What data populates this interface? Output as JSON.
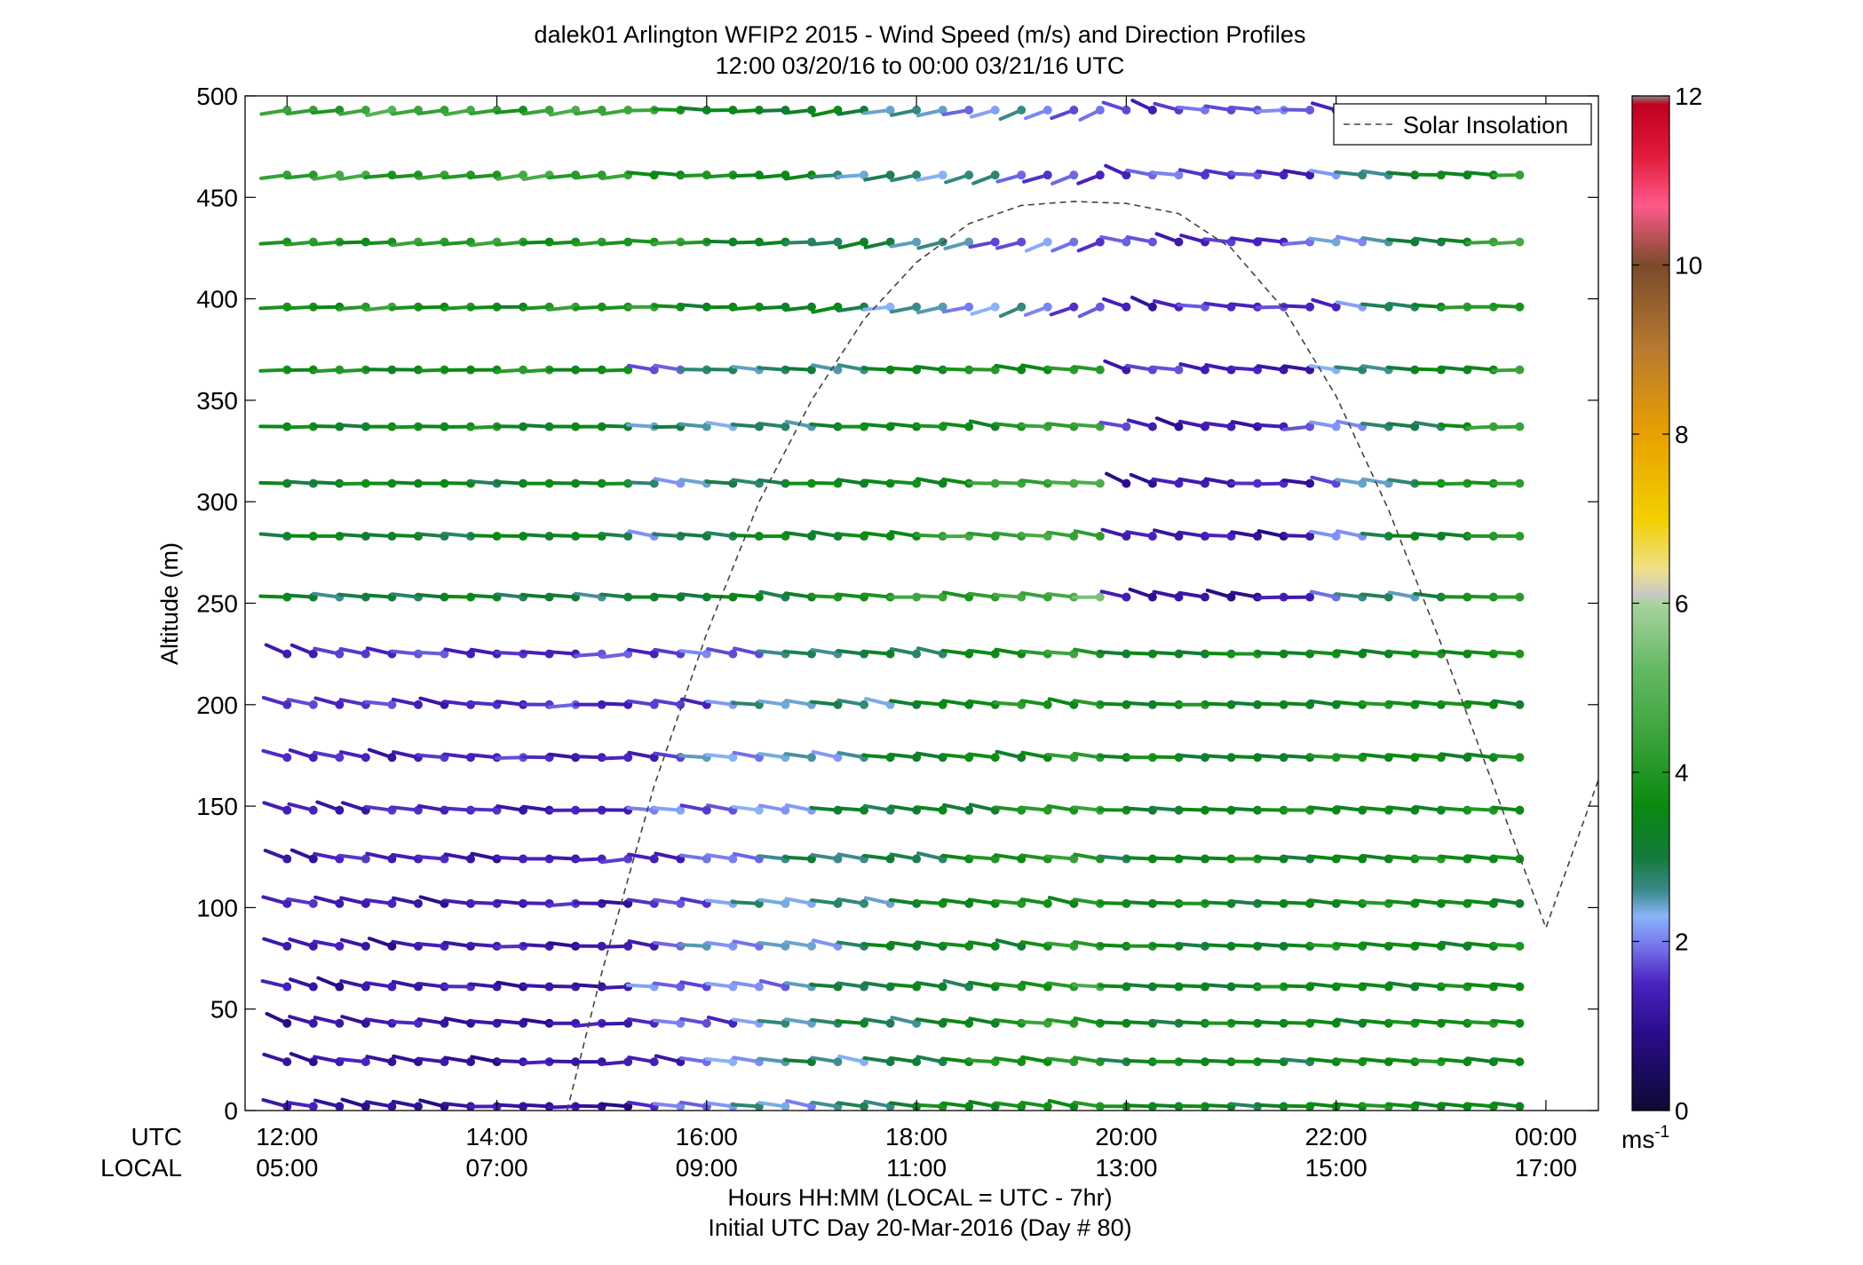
{
  "chart_data": {
    "type": "wind-barb-profile",
    "title_line1": "dalek01 Arlington WFIP2 2015 - Wind Speed (m/s) and Direction Profiles",
    "title_line2": "12:00 03/20/16 to 00:00 03/21/16  UTC",
    "ylabel": "Altitude (m)",
    "ylim": [
      0,
      500
    ],
    "y_ticks": [
      0,
      50,
      100,
      150,
      200,
      250,
      300,
      350,
      400,
      450,
      500
    ],
    "x_ticks_utc": [
      "12:00",
      "14:00",
      "16:00",
      "18:00",
      "20:00",
      "22:00",
      "00:00"
    ],
    "x_ticks_local": [
      "05:00",
      "07:00",
      "09:00",
      "11:00",
      "13:00",
      "15:00",
      "17:00"
    ],
    "x_tick_hours": [
      12,
      14,
      16,
      18,
      20,
      22,
      24
    ],
    "xlim_hours": [
      11.6,
      24.5
    ],
    "utc_row_label": "UTC",
    "local_row_label": "LOCAL",
    "xlabel": "Hours HH:MM  (LOCAL = UTC - 7hr)",
    "xlabel2": "Initial UTC Day 20-Mar-2016 (Day # 80)",
    "legend_label": "Solar Insolation",
    "legend_location": "top-right",
    "colorbar": {
      "min": 0,
      "max": 12,
      "ticks": [
        0,
        2,
        4,
        6,
        8,
        10,
        12
      ],
      "unit_base": "ms",
      "unit_exp": "-1",
      "stops": [
        {
          "v": 0.0,
          "c": "#0d0a33"
        },
        {
          "v": 0.9,
          "c": "#2a0c8a"
        },
        {
          "v": 1.5,
          "c": "#4a22c0"
        },
        {
          "v": 2.0,
          "c": "#7a7ff0"
        },
        {
          "v": 2.3,
          "c": "#8ab4f8"
        },
        {
          "v": 2.6,
          "c": "#3a8a8a"
        },
        {
          "v": 3.0,
          "c": "#137a3a"
        },
        {
          "v": 3.6,
          "c": "#0a8a10"
        },
        {
          "v": 4.4,
          "c": "#3aa23a"
        },
        {
          "v": 5.2,
          "c": "#62b862"
        },
        {
          "v": 6.0,
          "c": "#a8d4a0"
        },
        {
          "v": 6.1,
          "c": "#c8c8c8"
        },
        {
          "v": 6.4,
          "c": "#f0e08a"
        },
        {
          "v": 7.0,
          "c": "#f2cf00"
        },
        {
          "v": 8.0,
          "c": "#e8a000"
        },
        {
          "v": 9.0,
          "c": "#b87a30"
        },
        {
          "v": 10.0,
          "c": "#7a4a2a"
        },
        {
          "v": 10.7,
          "c": "#ff5a8a"
        },
        {
          "v": 11.3,
          "c": "#e01a3a"
        },
        {
          "v": 11.9,
          "c": "#c00020"
        },
        {
          "v": 12.0,
          "c": "#888888"
        }
      ]
    },
    "barb_heights_m": [
      2,
      24,
      43,
      61,
      81,
      102,
      124,
      148,
      174,
      200,
      225,
      253,
      283,
      309,
      337,
      365,
      396,
      428,
      461,
      493
    ],
    "barb_hours": [
      12.0,
      12.25,
      12.5,
      12.75,
      13.0,
      13.25,
      13.5,
      13.75,
      14.0,
      14.25,
      14.5,
      14.75,
      15.0,
      15.25,
      15.5,
      15.75,
      16.0,
      16.25,
      16.5,
      16.75,
      17.0,
      17.25,
      17.5,
      17.75,
      18.0,
      18.25,
      18.5,
      18.75,
      19.0,
      19.25,
      19.5,
      19.75,
      20.0,
      20.25,
      20.5,
      20.75,
      21.0,
      21.25,
      21.5,
      21.75,
      22.0,
      22.25,
      22.5,
      22.75,
      23.0,
      23.25,
      23.5,
      23.75
    ],
    "insolation_curve": [
      [
        14.67,
        0
      ],
      [
        15.0,
        68
      ],
      [
        15.5,
        160
      ],
      [
        16.0,
        235
      ],
      [
        16.5,
        300
      ],
      [
        17.0,
        350
      ],
      [
        17.5,
        390
      ],
      [
        18.0,
        418
      ],
      [
        18.5,
        437
      ],
      [
        19.0,
        446
      ],
      [
        19.5,
        448
      ],
      [
        20.0,
        447
      ],
      [
        20.5,
        442
      ],
      [
        21.0,
        425
      ],
      [
        21.5,
        395
      ],
      [
        22.0,
        352
      ],
      [
        22.5,
        296
      ],
      [
        23.0,
        230
      ],
      [
        23.5,
        160
      ],
      [
        24.0,
        90
      ],
      [
        24.5,
        163
      ]
    ]
  }
}
